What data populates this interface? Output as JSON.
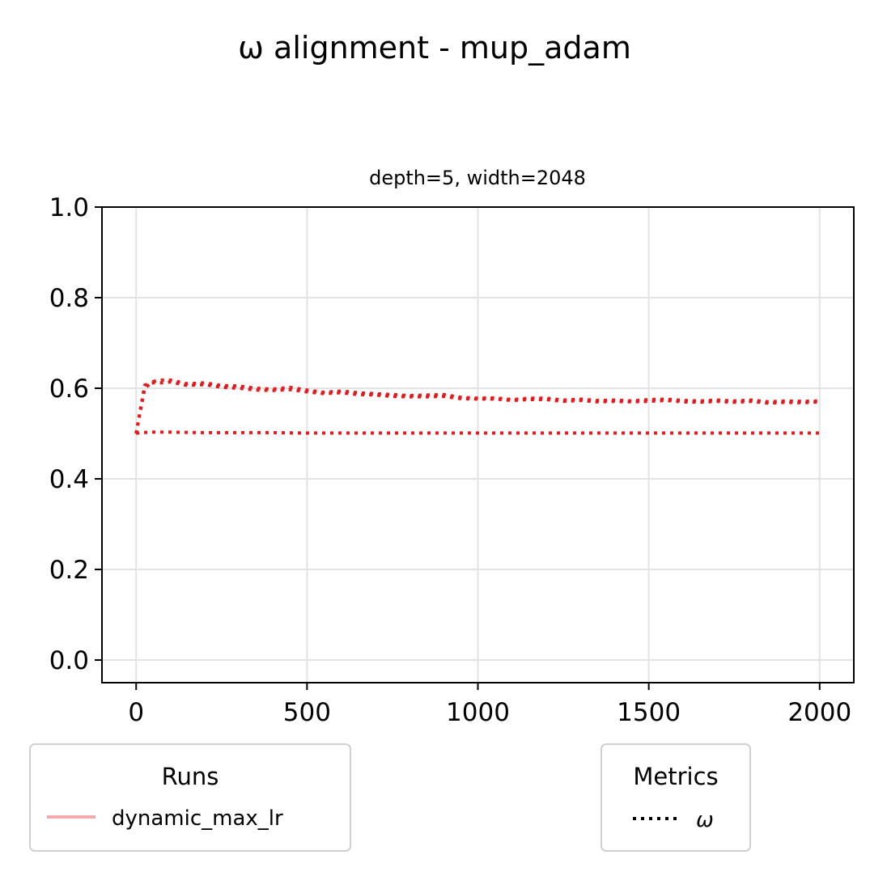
{
  "chart_data": {
    "type": "line",
    "title": "ω alignment - mup_adam",
    "subtitle": "depth=5, width=2048",
    "xlabel": "",
    "ylabel": "",
    "xlim": [
      -100,
      2100
    ],
    "ylim": [
      -0.05,
      1.0
    ],
    "xticks": [
      0,
      500,
      1000,
      1500,
      2000
    ],
    "yticks": [
      0.0,
      0.2,
      0.4,
      0.6,
      0.8,
      1.0
    ],
    "xtick_labels": [
      "0",
      "500",
      "1000",
      "1500",
      "2000"
    ],
    "ytick_labels": [
      "0.0",
      "0.2",
      "0.4",
      "0.6",
      "0.8",
      "1.0"
    ],
    "grid": true,
    "series": [
      {
        "name": "dynamic_max_lr",
        "metric": "ω",
        "color": "#e41a1c",
        "line_style": "dotted",
        "x": [
          0,
          25,
          50,
          75,
          100,
          150,
          200,
          250,
          300,
          350,
          400,
          450,
          500,
          550,
          600,
          650,
          700,
          750,
          800,
          850,
          900,
          950,
          1000,
          1050,
          1100,
          1150,
          1200,
          1250,
          1300,
          1350,
          1400,
          1450,
          1500,
          1550,
          1600,
          1650,
          1700,
          1750,
          1800,
          1850,
          1900,
          1950,
          2000
        ],
        "y": [
          0.5,
          0.6,
          0.615,
          0.618,
          0.618,
          0.61,
          0.612,
          0.606,
          0.605,
          0.6,
          0.598,
          0.602,
          0.596,
          0.591,
          0.594,
          0.59,
          0.588,
          0.586,
          0.584,
          0.585,
          0.586,
          0.58,
          0.578,
          0.579,
          0.575,
          0.578,
          0.578,
          0.574,
          0.576,
          0.573,
          0.574,
          0.572,
          0.575,
          0.576,
          0.573,
          0.572,
          0.574,
          0.572,
          0.574,
          0.57,
          0.572,
          0.571,
          0.572
        ]
      },
      {
        "name": "dynamic_max_lr",
        "metric": "ω",
        "color": "#e41a1c",
        "line_style": "dotted",
        "x": [
          0,
          25,
          50,
          75,
          100,
          150,
          200,
          250,
          300,
          350,
          400,
          450,
          500,
          550,
          600,
          650,
          700,
          750,
          800,
          850,
          900,
          950,
          1000,
          1050,
          1100,
          1150,
          1200,
          1250,
          1300,
          1350,
          1400,
          1450,
          1500,
          1550,
          1600,
          1650,
          1700,
          1750,
          1800,
          1850,
          1900,
          1950,
          2000
        ],
        "y": [
          0.5,
          0.607,
          0.612,
          0.612,
          0.614,
          0.606,
          0.608,
          0.602,
          0.6,
          0.596,
          0.595,
          0.597,
          0.592,
          0.588,
          0.59,
          0.586,
          0.585,
          0.582,
          0.581,
          0.581,
          0.582,
          0.577,
          0.576,
          0.576,
          0.573,
          0.575,
          0.575,
          0.571,
          0.573,
          0.57,
          0.571,
          0.57,
          0.571,
          0.573,
          0.57,
          0.569,
          0.571,
          0.569,
          0.571,
          0.567,
          0.569,
          0.568,
          0.57
        ]
      },
      {
        "name": "dynamic_max_lr",
        "metric": "ω",
        "color": "#e41a1c",
        "line_style": "dotted",
        "x": [
          0,
          10,
          50,
          100,
          200,
          300,
          400,
          500,
          600,
          700,
          800,
          900,
          1000,
          1100,
          1200,
          1300,
          1400,
          1500,
          1600,
          1700,
          1800,
          1900,
          2000
        ],
        "y": [
          0.5,
          0.502,
          0.503,
          0.503,
          0.502,
          0.502,
          0.502,
          0.501,
          0.501,
          0.501,
          0.501,
          0.501,
          0.501,
          0.501,
          0.501,
          0.501,
          0.501,
          0.501,
          0.501,
          0.501,
          0.501,
          0.501,
          0.501
        ]
      }
    ],
    "legends": [
      {
        "title": "Runs",
        "location": "below-left",
        "entries": [
          {
            "label": "dynamic_max_lr",
            "color": "#f2aaaa",
            "line_style": "solid"
          }
        ]
      },
      {
        "title": "Metrics",
        "location": "below-right",
        "entries": [
          {
            "label": "ω",
            "color": "#000000",
            "line_style": "dotted"
          }
        ]
      }
    ]
  }
}
